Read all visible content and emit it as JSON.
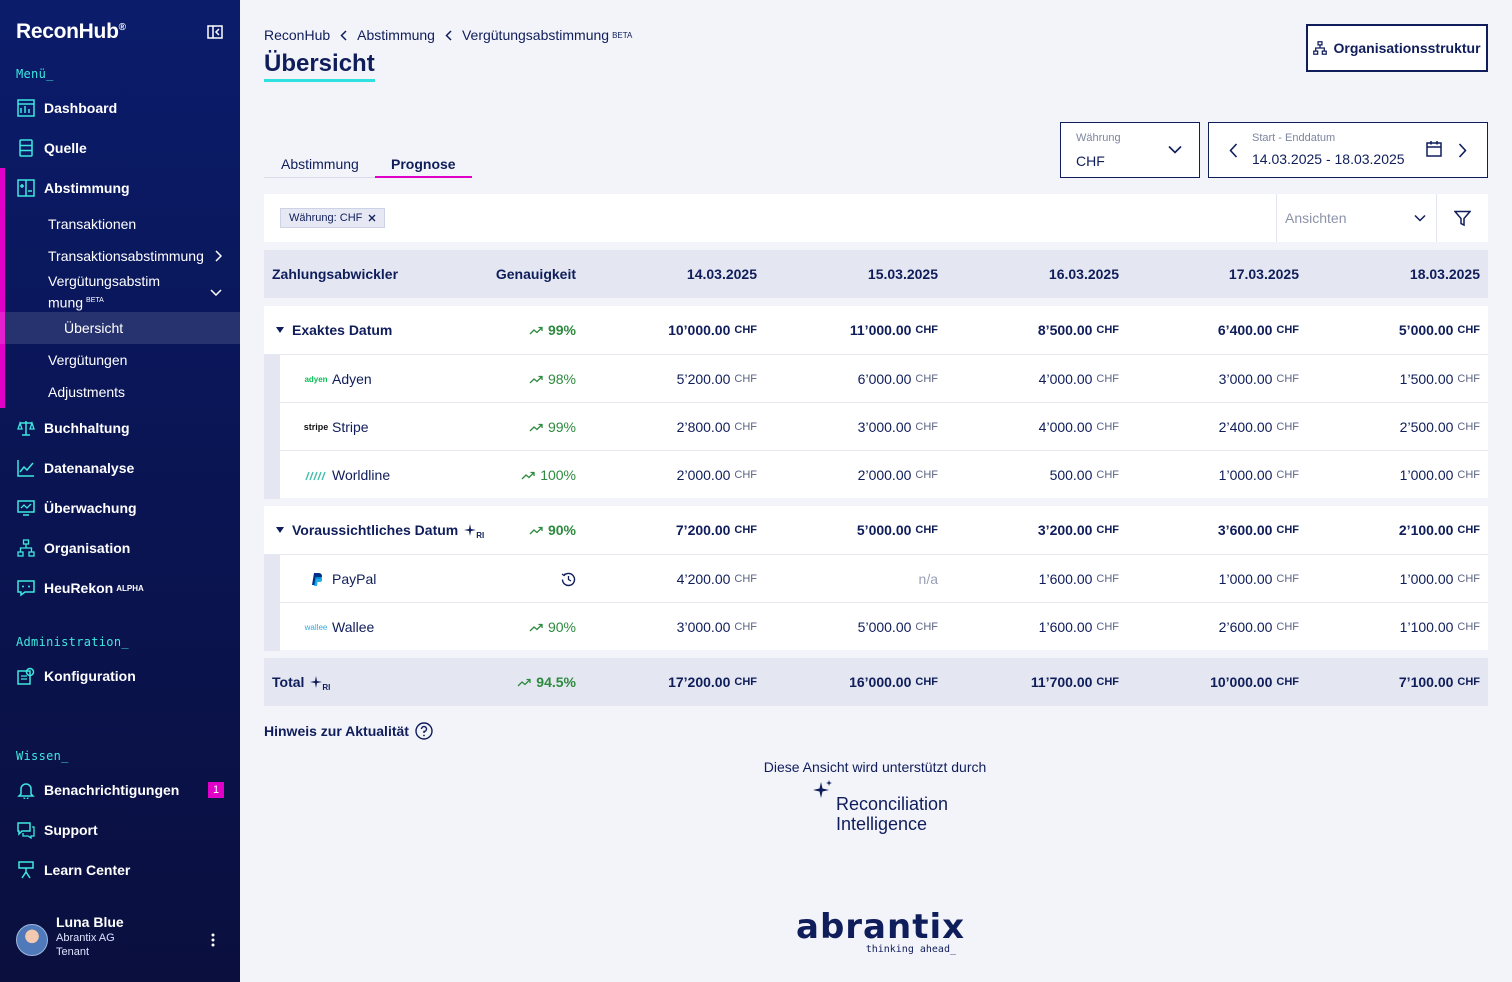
{
  "app": {
    "name": "ReconHub",
    "trademark": "®"
  },
  "sidebar": {
    "menu_label": "Menü_",
    "items": [
      {
        "label": "Dashboard",
        "icon": "dashboard-icon"
      },
      {
        "label": "Quelle",
        "icon": "database-icon"
      },
      {
        "label": "Abstimmung",
        "icon": "reconciliation-icon"
      },
      {
        "label": "Buchhaltung",
        "icon": "scale-icon"
      },
      {
        "label": "Datenanalyse",
        "icon": "chart-icon"
      },
      {
        "label": "Überwachung",
        "icon": "monitor-icon"
      },
      {
        "label": "Organisation",
        "icon": "org-tree-icon"
      },
      {
        "label": "HeuRekon",
        "icon": "chat-icon",
        "sup": "ALPHA"
      }
    ],
    "sub_items": {
      "transaktionen": "Transaktionen",
      "transaktionsabstimmung": "Transaktionsabstimmung",
      "verguetungsabstimmung_1": "Vergütungsabstim",
      "verguetungsabstimmung_2": "mung",
      "beta": "BETA",
      "uebersicht": "Übersicht",
      "verguetungen": "Vergütungen",
      "adjustments": "Adjustments"
    },
    "admin_label": "Administration_",
    "admin_items": [
      {
        "label": "Konfiguration"
      }
    ],
    "wissen_label": "Wissen_",
    "wissen_items": [
      {
        "label": "Benachrichtigungen",
        "badge": "1"
      },
      {
        "label": "Support"
      },
      {
        "label": "Learn Center"
      }
    ],
    "user": {
      "name": "Luna Blue",
      "org": "Abrantix AG",
      "role": "Tenant"
    }
  },
  "breadcrumb": {
    "home": "ReconHub",
    "level1": "Abstimmung",
    "level2": "Vergütungsabstimmung",
    "level2_sup": "BETA"
  },
  "page": {
    "title": "Übersicht",
    "org_button": "Organisationsstruktur"
  },
  "tabs": {
    "tab1": "Abstimmung",
    "tab2": "Prognose"
  },
  "currency": {
    "label": "Währung",
    "value": "CHF"
  },
  "daterange": {
    "label": "Start - Enddatum",
    "value": "14.03.2025 - 18.03.2025"
  },
  "filter": {
    "chip": "Währung: CHF",
    "views_placeholder": "Ansichten"
  },
  "table": {
    "headers": {
      "provider": "Zahlungsabwickler",
      "accuracy": "Genauigkeit",
      "d1": "14.03.2025",
      "d2": "15.03.2025",
      "d3": "16.03.2025",
      "d4": "17.03.2025",
      "d5": "18.03.2025"
    },
    "currency": "CHF",
    "group1": {
      "name": "Exaktes Datum",
      "accuracy": "99%",
      "values": [
        "10’000.00",
        "11’000.00",
        "8’500.00",
        "6’400.00",
        "5’000.00"
      ],
      "rows": [
        {
          "name": "Adyen",
          "logo": "adyen",
          "accuracy": "98%",
          "values": [
            "5’200.00",
            "6’000.00",
            "4’000.00",
            "3’000.00",
            "1’500.00"
          ]
        },
        {
          "name": "Stripe",
          "logo": "stripe",
          "accuracy": "99%",
          "values": [
            "2’800.00",
            "3’000.00",
            "4’000.00",
            "2’400.00",
            "2’500.00"
          ]
        },
        {
          "name": "Worldline",
          "logo": "worldline",
          "accuracy": "100%",
          "values": [
            "2’000.00",
            "2’000.00",
            "500.00",
            "1’000.00",
            "1’000.00"
          ]
        }
      ]
    },
    "group2": {
      "name": "Voraussichtliches Datum",
      "accuracy": "90%",
      "ri": "RI",
      "values": [
        "7’200.00",
        "5’000.00",
        "3’200.00",
        "3’600.00",
        "2’100.00"
      ],
      "rows": [
        {
          "name": "PayPal",
          "logo": "paypal",
          "accuracy": "",
          "values": [
            "4’200.00",
            "n/a",
            "1’600.00",
            "1’000.00",
            "1’000.00"
          ]
        },
        {
          "name": "Wallee",
          "logo": "wallee",
          "accuracy": "90%",
          "values": [
            "3’000.00",
            "5’000.00",
            "1’600.00",
            "2’600.00",
            "1’100.00"
          ]
        }
      ]
    },
    "total": {
      "name": "Total",
      "ri": "RI",
      "accuracy": "94.5%",
      "values": [
        "17’200.00",
        "16’000.00",
        "11’700.00",
        "10’000.00",
        "7’100.00"
      ]
    }
  },
  "hint": "Hinweis zur Aktualität",
  "powered_by": "Diese Ansicht wird unterstützt durch",
  "ri_brand": {
    "line1": "Reconciliation",
    "line2": "Intelligence"
  },
  "footer_brand": {
    "name": "abrantix",
    "tagline": "thinking ahead_"
  },
  "colors": {
    "sidebar": "#0b1c6b",
    "accent_magenta": "#e100c8",
    "accent_cyan": "#2ee0e0",
    "positive": "#2d8a3e",
    "navy": "#0f1d5a"
  }
}
